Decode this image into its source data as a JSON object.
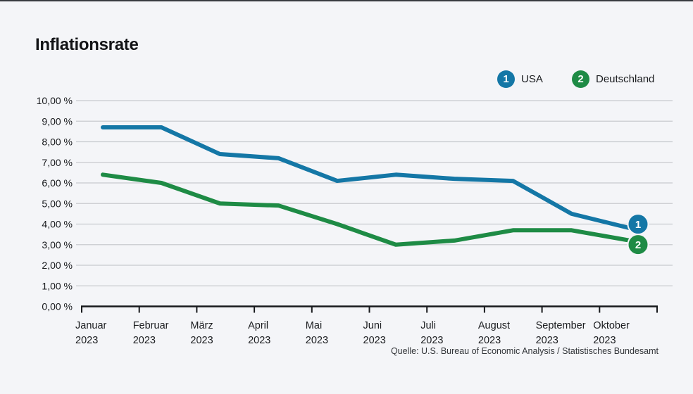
{
  "page": {
    "title": "Inflationsrate",
    "background_color": "#f4f5f8"
  },
  "legend": [
    {
      "badge": "1",
      "label": "USA",
      "color": "#1477a6"
    },
    {
      "badge": "2",
      "label": "Deutschland",
      "color": "#1e8b45"
    }
  ],
  "chart_data": {
    "type": "line",
    "title": "Inflationsrate",
    "categories": [
      {
        "month": "Januar",
        "year": "2023"
      },
      {
        "month": "Februar",
        "year": "2023"
      },
      {
        "month": "März",
        "year": "2023"
      },
      {
        "month": "April",
        "year": "2023"
      },
      {
        "month": "Mai",
        "year": "2023"
      },
      {
        "month": "Juni",
        "year": "2023"
      },
      {
        "month": "Juli",
        "year": "2023"
      },
      {
        "month": "August",
        "year": "2023"
      },
      {
        "month": "September",
        "year": "2023"
      },
      {
        "month": "Oktober",
        "year": "2023"
      }
    ],
    "series": [
      {
        "name": "USA",
        "badge": "1",
        "color": "#1477a6",
        "values": [
          8.7,
          8.7,
          7.4,
          7.2,
          6.1,
          6.4,
          6.2,
          6.1,
          4.5,
          3.8
        ]
      },
      {
        "name": "Deutschland",
        "badge": "2",
        "color": "#1e8b45",
        "values": [
          6.4,
          6.0,
          5.0,
          4.9,
          4.0,
          3.0,
          3.2,
          3.7,
          3.7,
          3.2
        ]
      }
    ],
    "ylim": [
      0,
      10
    ],
    "ytick_step": 1,
    "ytick_labels": [
      "10,00 %",
      "9,00 %",
      "8,00 %",
      "7,00 %",
      "6,00 %",
      "5,00 %",
      "4,00 %",
      "3,00 %",
      "2,00 %",
      "1,00 %",
      "0,00 %"
    ],
    "unit": "%",
    "grid": true,
    "legend_position": "top-right",
    "source": "Quelle: U.S. Bureau of Economic Analysis / Statistisches Bundesamt"
  }
}
